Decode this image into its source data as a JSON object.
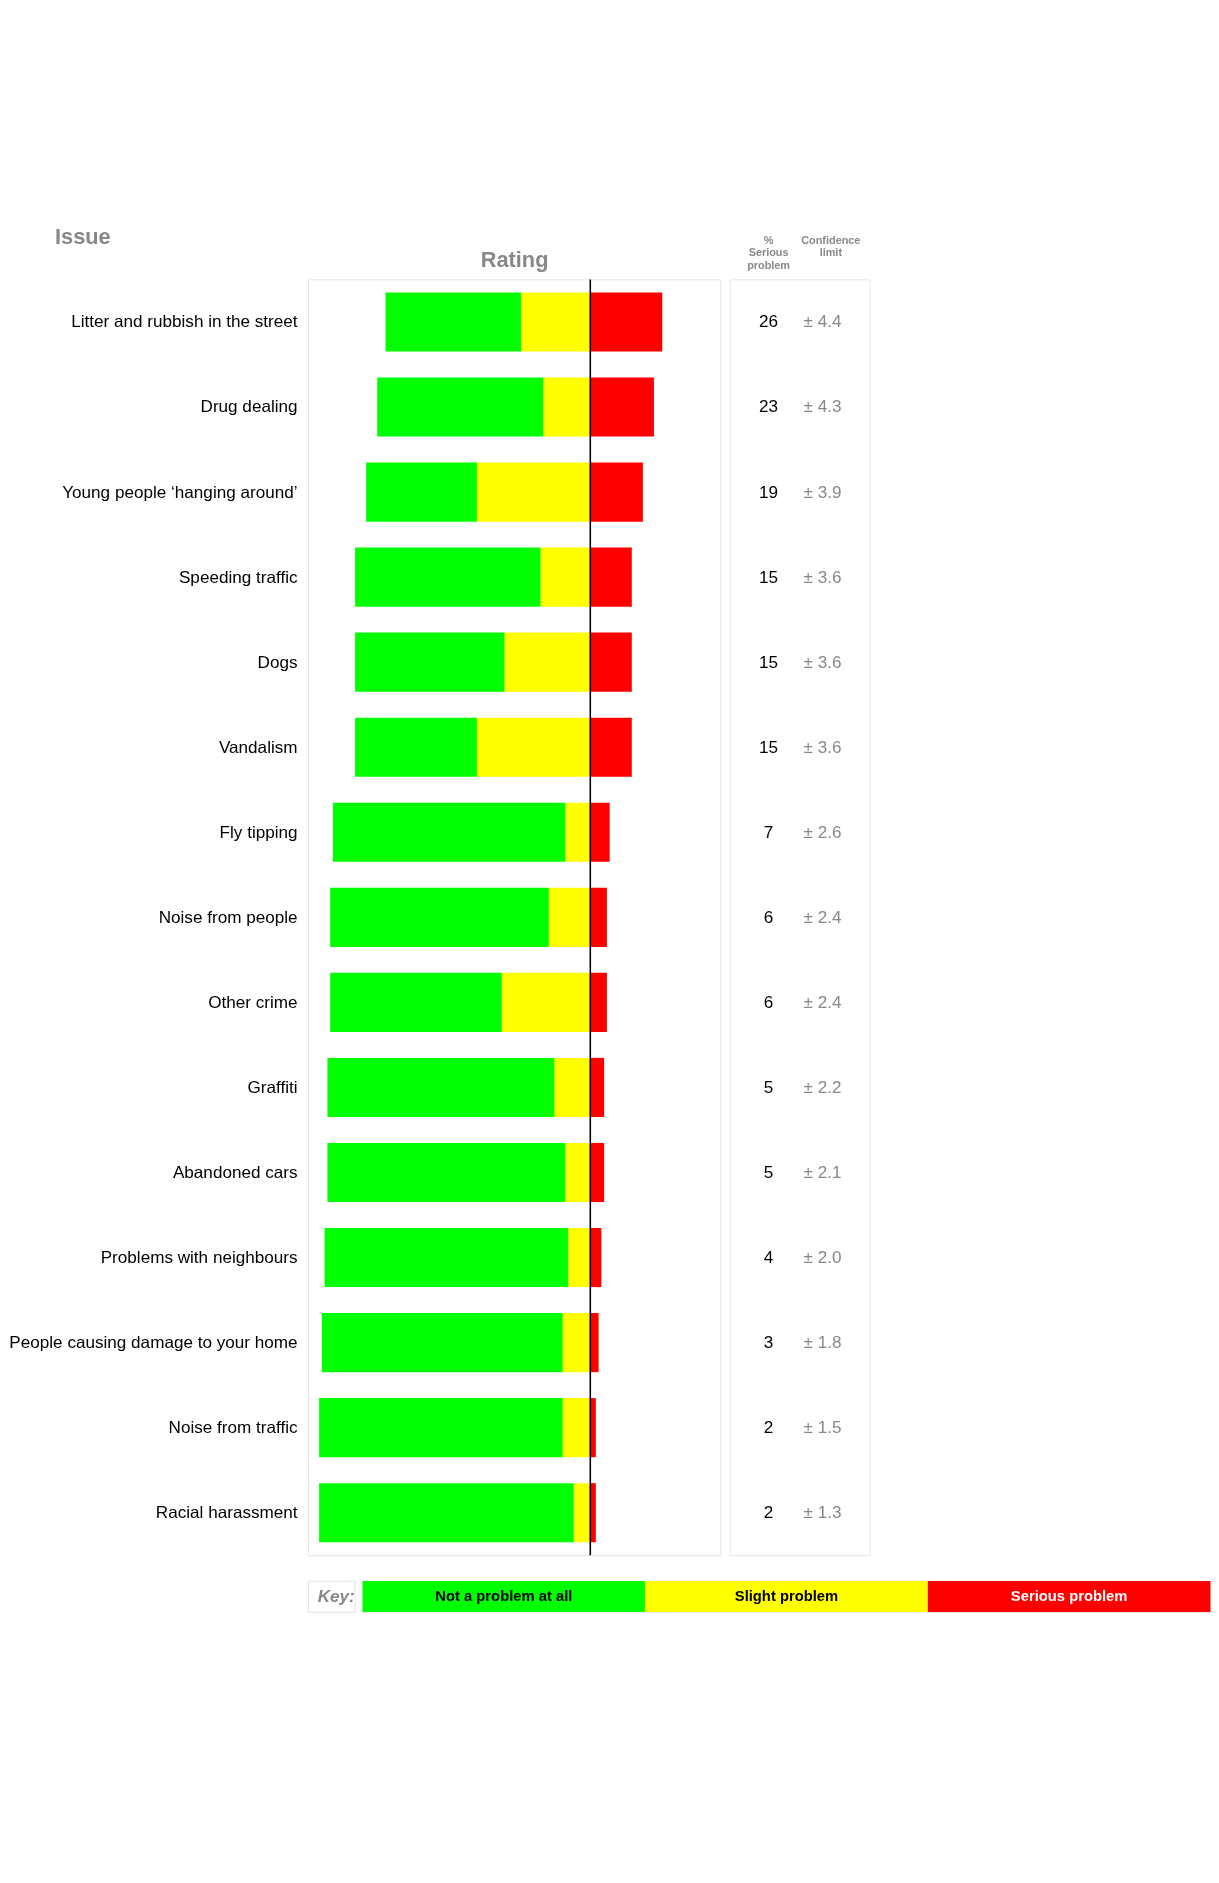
{
  "chart_data": {
    "type": "bar",
    "stacked": true,
    "orientation": "horizontal",
    "xlabel": "Rating",
    "ylabel": "Issue",
    "legend_title": "Key:",
    "legend": "bottom",
    "grid": false,
    "tick_labels": "y",
    "categories": [
      "Litter and rubbish in the street",
      "Drug dealing",
      "Young people ‘hanging around’",
      "Speeding traffic",
      "Dogs",
      "Vandalism",
      "Fly tipping",
      "Noise from people",
      "Other crime",
      "Graffiti",
      "Abandoned cars",
      "Problems with neighbours",
      "People causing damage to your home",
      "Noise from traffic",
      "Racial harassment"
    ],
    "xlim": [
      -102,
      47
    ],
    "ref_lines": [
      {
        "axis": "x",
        "value": 0
      }
    ],
    "series": [
      {
        "name": "Slight problem",
        "color": "#ffff00",
        "values": [
          -25,
          -17,
          -41,
          -18,
          -31,
          -41,
          -9,
          -15,
          -32,
          -13,
          -9,
          -8,
          -10,
          -10,
          -6
        ]
      },
      {
        "name": "Not a problem at all",
        "color": "#00ff00",
        "values": [
          -49,
          -60,
          -40,
          -67,
          -54,
          -44,
          -84,
          -79,
          -62,
          -82,
          -86,
          -88,
          -87,
          -88,
          -92
        ]
      },
      {
        "name": "Serious problem",
        "color": "#ff0000",
        "values": [
          26,
          23,
          19,
          15,
          15,
          15,
          7,
          6,
          6,
          5,
          5,
          4,
          3,
          2,
          2
        ],
        "value_labels": [
          "26",
          "23",
          "19",
          "15",
          "15",
          "15",
          "7",
          "6",
          "6",
          "5",
          "5",
          "4",
          "3",
          "2",
          "2"
        ]
      }
    ],
    "annotations": [
      "% Serious problem",
      "Confidence limit",
      "± 4.4",
      "± 4.3",
      "± 3.9",
      "± 3.6",
      "± 3.6",
      "± 3.6",
      "± 2.6",
      "± 2.4",
      "± 2.4",
      "± 2.2",
      "± 2.1",
      "± 2.0",
      "± 1.8",
      "± 1.5",
      "± 1.3"
    ]
  }
}
